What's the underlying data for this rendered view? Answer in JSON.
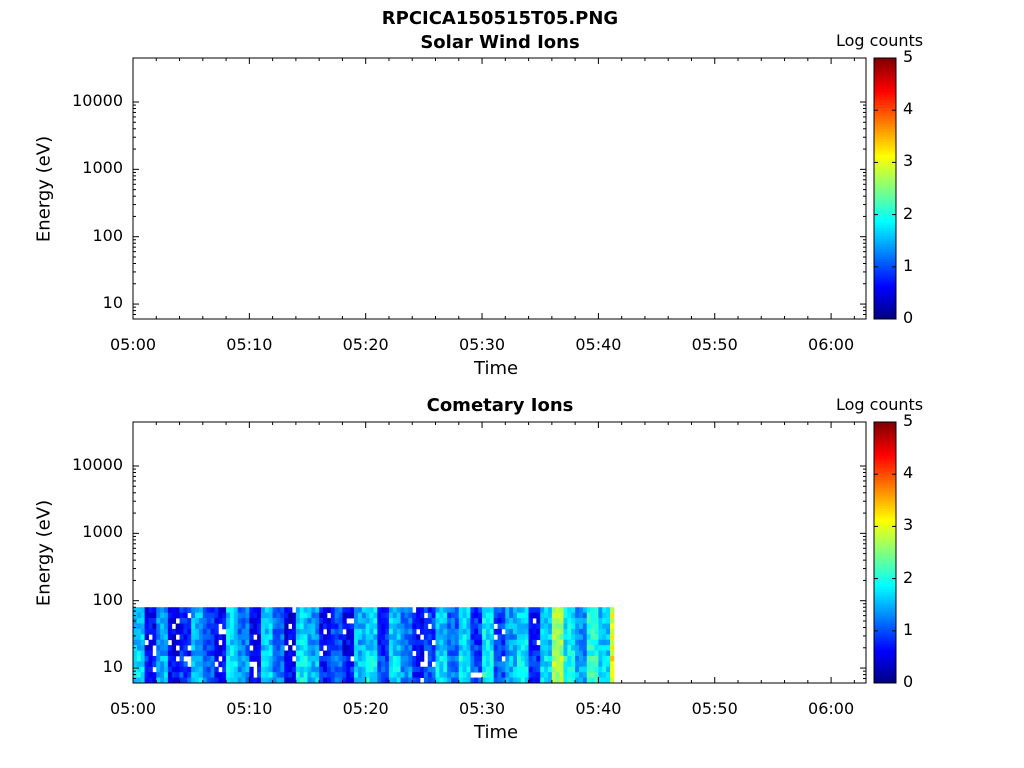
{
  "page": {
    "title": "RPCICA150515T05.PNG"
  },
  "chart_data": [
    {
      "type": "heatmap",
      "title": "Solar Wind Ions",
      "xlabel": "Time",
      "ylabel": "Energy (eV)",
      "x_ticks": [
        "05:00",
        "05:10",
        "05:20",
        "05:30",
        "05:40",
        "05:50",
        "06:00"
      ],
      "y_ticks": [
        "10",
        "100",
        "1000",
        "10000"
      ],
      "y_scale": "log",
      "ylim": [
        6,
        45000
      ],
      "xlim": [
        "05:00",
        "06:03"
      ],
      "colorbar": {
        "label": "Log counts",
        "ticks": [
          "0",
          "1",
          "2",
          "3",
          "4",
          "5"
        ],
        "range": [
          0,
          5
        ],
        "colormap": "jet"
      },
      "data_coverage": {
        "start": "05:00",
        "end": "05:00"
      },
      "values": []
    },
    {
      "type": "heatmap",
      "title": "Cometary Ions",
      "xlabel": "Time",
      "ylabel": "Energy (eV)",
      "x_ticks": [
        "05:00",
        "05:10",
        "05:20",
        "05:30",
        "05:40",
        "05:50",
        "06:00"
      ],
      "y_ticks": [
        "10",
        "100",
        "1000",
        "10000"
      ],
      "y_scale": "log",
      "ylim": [
        6,
        45000
      ],
      "xlim": [
        "05:00",
        "06:03"
      ],
      "colorbar": {
        "label": "Log counts",
        "ticks": [
          "0",
          "1",
          "2",
          "3",
          "4",
          "5"
        ],
        "range": [
          0,
          5
        ],
        "colormap": "jet"
      },
      "data_coverage": {
        "start": "05:00",
        "end": "05:41.5",
        "energy_min_ev": 6,
        "energy_max_ev": 80
      },
      "time_profile_minutes": [
        0,
        1,
        2,
        3,
        4,
        5,
        6,
        7,
        8,
        9,
        10,
        11,
        12,
        13,
        14,
        15,
        16,
        17,
        18,
        19,
        20,
        21,
        22,
        23,
        24,
        25,
        26,
        27,
        28,
        29,
        30,
        31,
        32,
        33,
        34,
        35,
        36,
        37,
        38,
        39,
        40,
        41
      ],
      "time_profile_log_counts": [
        1.6,
        0.6,
        1.4,
        0.5,
        0.8,
        1.5,
        1.0,
        0.6,
        1.7,
        1.2,
        0.6,
        1.6,
        1.1,
        0.5,
        1.7,
        1.4,
        0.6,
        1.0,
        0.6,
        1.5,
        1.7,
        0.8,
        1.6,
        1.2,
        0.6,
        0.9,
        1.6,
        1.1,
        1.7,
        0.9,
        1.8,
        0.9,
        1.4,
        1.7,
        0.7,
        1.6,
        2.6,
        1.8,
        1.3,
        2.0,
        1.6,
        3.0
      ]
    }
  ]
}
